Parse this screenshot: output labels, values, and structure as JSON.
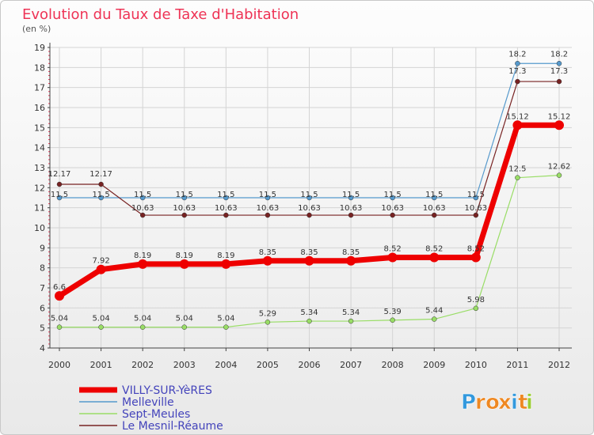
{
  "chart_data": {
    "type": "line",
    "title": "Evolution du Taux de Taxe d'Habitation",
    "subtitle": "(en %)",
    "x": [
      "2000",
      "2001",
      "2002",
      "2003",
      "2004",
      "2005",
      "2006",
      "2007",
      "2008",
      "2009",
      "2010",
      "2011",
      "2012"
    ],
    "ylim": [
      4,
      19
    ],
    "yticks": [
      4,
      5,
      6,
      7,
      8,
      9,
      10,
      11,
      12,
      13,
      14,
      15,
      16,
      17,
      18,
      19
    ],
    "grid": true,
    "legend": "bottom-left",
    "series": [
      {
        "name": "Melleville",
        "color": "#5599cc",
        "labels": [
          "11.5",
          "11.5",
          "11.5",
          "11.5",
          "11.5",
          "11.5",
          "11.5",
          "11.5",
          "11.5",
          "11.5",
          "11.5",
          "18.2",
          "18.2"
        ],
        "values": [
          11.5,
          11.5,
          11.5,
          11.5,
          11.5,
          11.5,
          11.5,
          11.5,
          11.5,
          11.5,
          11.5,
          18.2,
          18.2
        ]
      },
      {
        "name": "Le Mesnil-Réaume",
        "color": "#772222",
        "labels": [
          "12.17",
          "12.17",
          "10.63",
          "10.63",
          "10.63",
          "10.63",
          "10.63",
          "10.63",
          "10.63",
          "10.63",
          "10.63",
          "17.3",
          "17.3"
        ],
        "values": [
          12.17,
          12.17,
          10.63,
          10.63,
          10.63,
          10.63,
          10.63,
          10.63,
          10.63,
          10.63,
          10.63,
          17.3,
          17.3
        ]
      },
      {
        "name": "Sept-Meules",
        "color": "#99dd66",
        "labels": [
          "5.04",
          "5.04",
          "5.04",
          "5.04",
          "5.04",
          "5.29",
          "5.34",
          "5.34",
          "5.39",
          "5.44",
          "5.98",
          "12.5",
          "12.62"
        ],
        "values": [
          5.04,
          5.04,
          5.04,
          5.04,
          5.04,
          5.29,
          5.34,
          5.34,
          5.39,
          5.44,
          5.98,
          12.5,
          12.62
        ]
      },
      {
        "name": "VILLY-SUR-YèRES",
        "color": "#ee0000",
        "labels": [
          "6.6",
          "7.92",
          "8.19",
          "8.19",
          "8.19",
          "8.35",
          "8.35",
          "8.35",
          "8.52",
          "8.52",
          "8.52",
          "15.12",
          "15.12"
        ],
        "values": [
          6.6,
          7.92,
          8.19,
          8.19,
          8.19,
          8.35,
          8.35,
          8.35,
          8.52,
          8.52,
          8.52,
          15.12,
          15.12
        ]
      }
    ],
    "legend_order": [
      "VILLY-SUR-YèRES",
      "Melleville",
      "Sept-Meules",
      "Le Mesnil-Réaume"
    ]
  },
  "logo": {
    "letters": [
      "P",
      "r",
      "o",
      "x",
      "i",
      "t",
      "i"
    ],
    "colors": [
      "#3399dd",
      "#ee8822",
      "#ee8822",
      "#ee8822",
      "#3399dd",
      "#ee8822",
      "#99cc33"
    ]
  }
}
